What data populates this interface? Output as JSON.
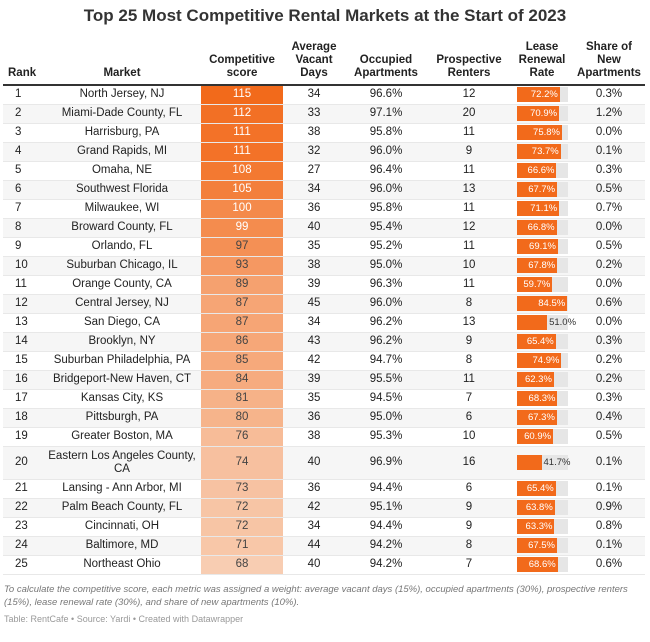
{
  "chart_data": {
    "type": "table",
    "title": "Top 25 Most Competitive Rental Markets at the Start of 2023",
    "columns": [
      "Rank",
      "Market",
      "Competitive score",
      "Average Vacant Days",
      "Occupied Apartments",
      "Prospective Renters",
      "Lease Renewal Rate",
      "Share of New Apartments"
    ],
    "accent_color": "#f26a1b",
    "rows": [
      [
        1,
        "North Jersey, NJ",
        115,
        34,
        "96.6%",
        12,
        72.2,
        "0.3%"
      ],
      [
        2,
        "Miami-Dade County, FL",
        112,
        33,
        "97.1%",
        20,
        70.9,
        "1.2%"
      ],
      [
        3,
        "Harrisburg, PA",
        111,
        38,
        "95.8%",
        11,
        75.8,
        "0.0%"
      ],
      [
        4,
        "Grand Rapids, MI",
        111,
        32,
        "96.0%",
        9,
        73.7,
        "0.1%"
      ],
      [
        5,
        "Omaha, NE",
        108,
        27,
        "96.4%",
        11,
        66.6,
        "0.3%"
      ],
      [
        6,
        "Southwest Florida",
        105,
        34,
        "96.0%",
        13,
        67.7,
        "0.5%"
      ],
      [
        7,
        "Milwaukee, WI",
        100,
        36,
        "95.8%",
        11,
        71.1,
        "0.7%"
      ],
      [
        8,
        "Broward County, FL",
        99,
        40,
        "95.4%",
        12,
        66.8,
        "0.0%"
      ],
      [
        9,
        "Orlando, FL",
        97,
        35,
        "95.2%",
        11,
        69.1,
        "0.5%"
      ],
      [
        10,
        "Suburban Chicago, IL",
        93,
        38,
        "95.0%",
        10,
        67.8,
        "0.2%"
      ],
      [
        11,
        "Orange County, CA",
        89,
        39,
        "96.3%",
        11,
        59.7,
        "0.0%"
      ],
      [
        12,
        "Central Jersey, NJ",
        87,
        45,
        "96.0%",
        8,
        84.5,
        "0.6%"
      ],
      [
        13,
        "San Diego, CA",
        87,
        34,
        "96.2%",
        13,
        51.0,
        "0.0%"
      ],
      [
        14,
        "Brooklyn, NY",
        86,
        43,
        "96.2%",
        9,
        65.4,
        "0.3%"
      ],
      [
        15,
        "Suburban Philadelphia, PA",
        85,
        42,
        "94.7%",
        8,
        74.9,
        "0.2%"
      ],
      [
        16,
        "Bridgeport-New Haven, CT",
        84,
        39,
        "95.5%",
        11,
        62.3,
        "0.2%"
      ],
      [
        17,
        "Kansas City, KS",
        81,
        35,
        "94.5%",
        7,
        68.3,
        "0.3%"
      ],
      [
        18,
        "Pittsburgh, PA",
        80,
        36,
        "95.0%",
        6,
        67.3,
        "0.4%"
      ],
      [
        19,
        "Greater Boston, MA",
        76,
        38,
        "95.3%",
        10,
        60.9,
        "0.5%"
      ],
      [
        20,
        "Eastern Los Angeles County, CA",
        74,
        40,
        "96.9%",
        16,
        41.7,
        "0.1%"
      ],
      [
        21,
        "Lansing - Ann Arbor, MI",
        73,
        36,
        "94.4%",
        6,
        65.4,
        "0.1%"
      ],
      [
        22,
        "Palm Beach County, FL",
        72,
        42,
        "95.1%",
        9,
        63.8,
        "0.9%"
      ],
      [
        23,
        "Cincinnati, OH",
        72,
        34,
        "94.4%",
        9,
        63.3,
        "0.8%"
      ],
      [
        24,
        "Baltimore, MD",
        71,
        44,
        "94.2%",
        8,
        67.5,
        "0.1%"
      ],
      [
        25,
        "Northeast Ohio",
        68,
        40,
        "94.2%",
        7,
        68.6,
        "0.6%"
      ]
    ]
  },
  "note": "To calculate the competitive score, each metric was assigned a weight: average vacant days (15%), occupied apartments (30%), prospective renters (15%), lease renewal rate (30%), and share of new apartments (10%).",
  "credit": "Table: RentCafe • Source: Yardi • Created with Datawrapper"
}
